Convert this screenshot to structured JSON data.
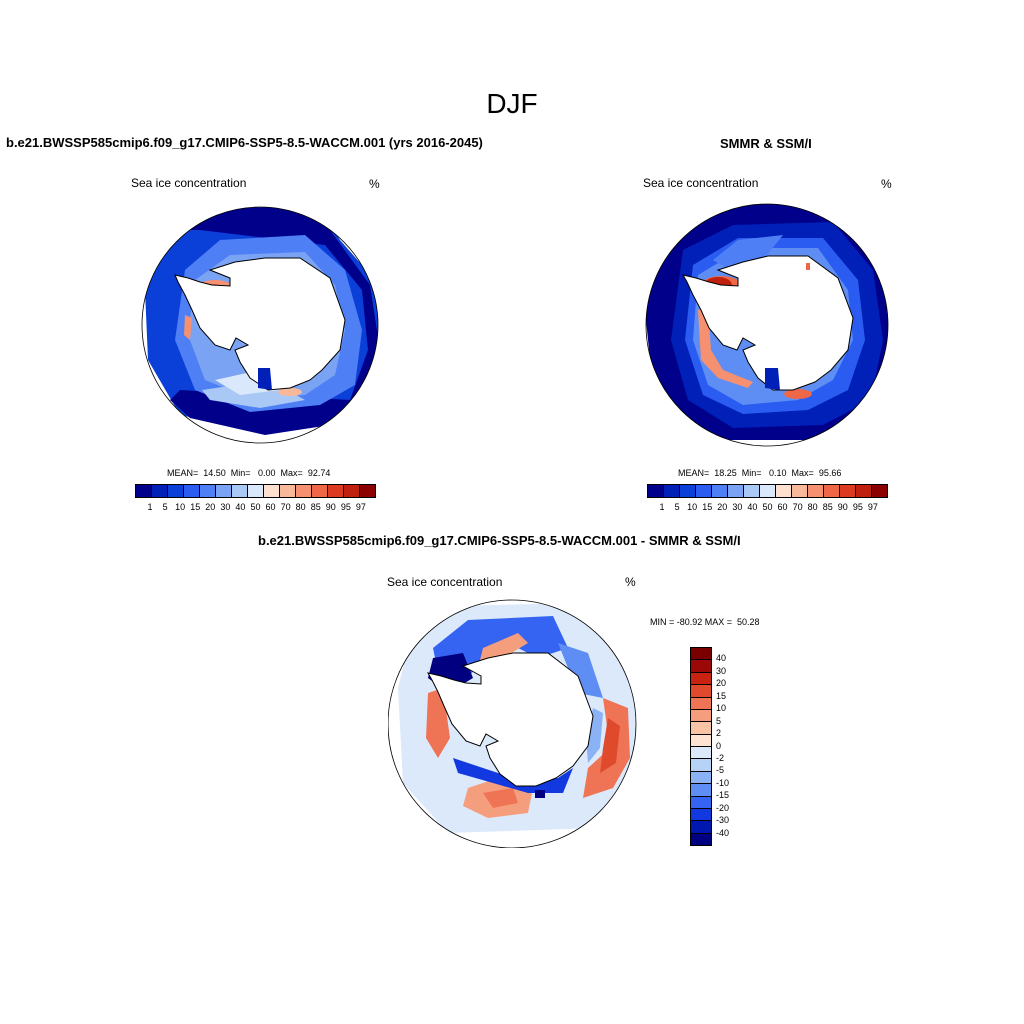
{
  "figure": {
    "title": "DJF",
    "colors": {
      "scale_pos": [
        "#00008b",
        "#0020b8",
        "#0a3fd8",
        "#2a5cf2",
        "#4f7ff5",
        "#7aa3f4",
        "#a9c8f5",
        "#d9e8fb",
        "#fde0cf",
        "#f8b99a",
        "#f59070",
        "#ee6747",
        "#dc3b22",
        "#c0210e",
        "#8b0000"
      ],
      "diff": [
        "#000080",
        "#0018b0",
        "#1238e0",
        "#3563f2",
        "#5e8ef4",
        "#8bb2f4",
        "#b6d2f7",
        "#dbe9fb",
        "#fde3d2",
        "#f9c3a6",
        "#f59e7d",
        "#ef7455",
        "#e04a2c",
        "#c72310",
        "#9b0808",
        "#7a0000"
      ],
      "accent_red": "#e04a2c"
    },
    "panels": [
      {
        "id": "model",
        "title": "b.e21.BWSSP585cmip6.f09_g17.CMIP6-SSP5-8.5-WACCM.001 (yrs 2016-2045)",
        "left_label": "Sea ice concentration",
        "units": "%",
        "stats": "MEAN=  14.50  Min=   0.00  Max=  92.74",
        "mean": 14.5,
        "min": 0.0,
        "max": 92.74,
        "colorbar_ticks": [
          "1",
          "5",
          "10",
          "15",
          "20",
          "30",
          "40",
          "50",
          "60",
          "70",
          "80",
          "85",
          "90",
          "95",
          "97"
        ]
      },
      {
        "id": "obs",
        "title": "SMMR & SSM/I",
        "left_label": "Sea ice concentration",
        "units": "%",
        "stats": "MEAN=  18.25  Min=   0.10  Max=  95.66",
        "mean": 18.25,
        "min": 0.1,
        "max": 95.66,
        "colorbar_ticks": [
          "1",
          "5",
          "10",
          "15",
          "20",
          "30",
          "40",
          "50",
          "60",
          "70",
          "80",
          "85",
          "90",
          "95",
          "97"
        ]
      },
      {
        "id": "diff",
        "title": "b.e21.BWSSP585cmip6.f09_g17.CMIP6-SSP5-8.5-WACCM.001 - SMMR & SSM/I",
        "left_label": "Sea ice concentration",
        "units": "%",
        "stats": "MIN = -80.92 MAX =  50.28",
        "min": -80.92,
        "max": 50.28,
        "colorbar_ticks": [
          "40",
          "30",
          "20",
          "15",
          "10",
          "5",
          "2",
          "0",
          "-2",
          "-5",
          "-10",
          "-15",
          "-20",
          "-30",
          "-40"
        ]
      }
    ]
  }
}
